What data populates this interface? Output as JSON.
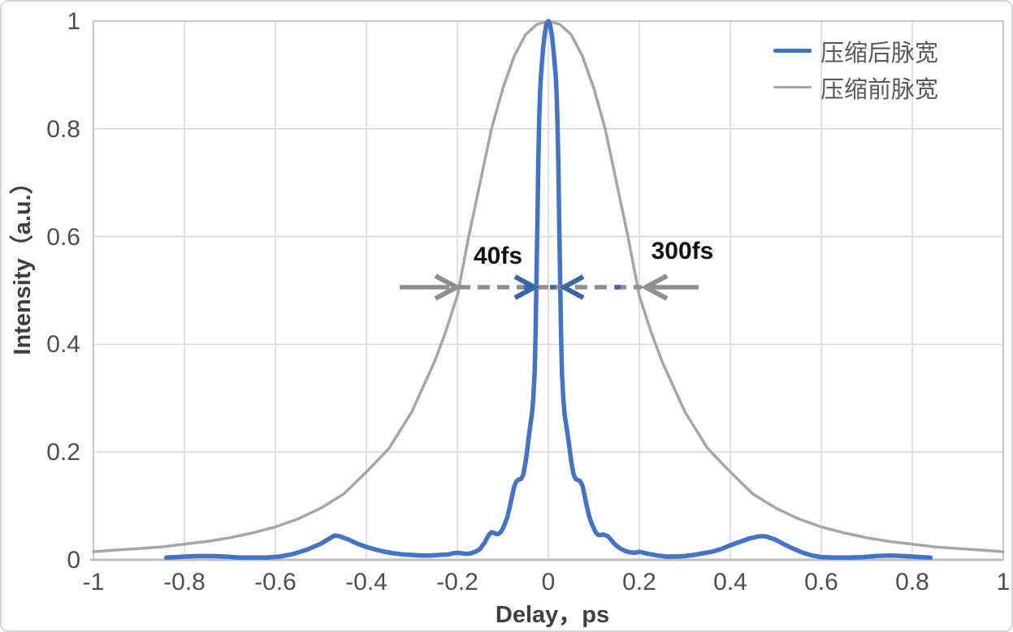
{
  "chart_data": {
    "type": "line",
    "title": "",
    "xlabel": "Delay，ps",
    "ylabel": "Intensity（a.u.）",
    "xlim": [
      -1,
      1
    ],
    "ylim": [
      0,
      1
    ],
    "grid": true,
    "legend_position": "top-right",
    "x_ticks": [
      -1,
      -0.8,
      -0.6,
      -0.4,
      -0.2,
      0,
      0.2,
      0.4,
      0.6,
      0.8,
      1
    ],
    "x_tick_labels": [
      "-1",
      "-0.8",
      "-0.6",
      "-0.4",
      "-0.2",
      "0",
      "0.2",
      "0.4",
      "0.6",
      "0.8",
      "1"
    ],
    "y_ticks": [
      0,
      0.2,
      0.4,
      0.6,
      0.8,
      1
    ],
    "y_tick_labels": [
      "0",
      "0.2",
      "0.4",
      "0.6",
      "0.8",
      "1"
    ],
    "series": [
      {
        "name": "压缩后脉宽",
        "color": "#4472C4",
        "stroke_width": 5.5,
        "points": [
          [
            -0.84,
            0.004
          ],
          [
            -0.82,
            0.005
          ],
          [
            -0.8,
            0.006
          ],
          [
            -0.77,
            0.007
          ],
          [
            -0.74,
            0.007
          ],
          [
            -0.71,
            0.006
          ],
          [
            -0.68,
            0.004
          ],
          [
            -0.65,
            0.004
          ],
          [
            -0.62,
            0.004
          ],
          [
            -0.59,
            0.006
          ],
          [
            -0.56,
            0.011
          ],
          [
            -0.53,
            0.019
          ],
          [
            -0.5,
            0.03
          ],
          [
            -0.48,
            0.04
          ],
          [
            -0.47,
            0.045
          ],
          [
            -0.46,
            0.044
          ],
          [
            -0.44,
            0.038
          ],
          [
            -0.42,
            0.03
          ],
          [
            -0.4,
            0.024
          ],
          [
            -0.38,
            0.019
          ],
          [
            -0.36,
            0.015
          ],
          [
            -0.34,
            0.012
          ],
          [
            -0.32,
            0.01
          ],
          [
            -0.3,
            0.009
          ],
          [
            -0.28,
            0.008
          ],
          [
            -0.26,
            0.008
          ],
          [
            -0.24,
            0.009
          ],
          [
            -0.22,
            0.01
          ],
          [
            -0.21,
            0.012
          ],
          [
            -0.2,
            0.013
          ],
          [
            -0.19,
            0.012
          ],
          [
            -0.18,
            0.011
          ],
          [
            -0.17,
            0.012
          ],
          [
            -0.16,
            0.015
          ],
          [
            -0.15,
            0.02
          ],
          [
            -0.145,
            0.026
          ],
          [
            -0.14,
            0.032
          ],
          [
            -0.135,
            0.04
          ],
          [
            -0.13,
            0.047
          ],
          [
            -0.125,
            0.051
          ],
          [
            -0.12,
            0.05
          ],
          [
            -0.115,
            0.048
          ],
          [
            -0.11,
            0.048
          ],
          [
            -0.105,
            0.051
          ],
          [
            -0.1,
            0.058
          ],
          [
            -0.095,
            0.068
          ],
          [
            -0.09,
            0.08
          ],
          [
            -0.085,
            0.097
          ],
          [
            -0.08,
            0.117
          ],
          [
            -0.075,
            0.136
          ],
          [
            -0.07,
            0.146
          ],
          [
            -0.065,
            0.149
          ],
          [
            -0.06,
            0.15
          ],
          [
            -0.055,
            0.158
          ],
          [
            -0.05,
            0.182
          ],
          [
            -0.047,
            0.2
          ],
          [
            -0.044,
            0.222
          ],
          [
            -0.04,
            0.247
          ],
          [
            -0.036,
            0.27
          ],
          [
            -0.033,
            0.3
          ],
          [
            -0.03,
            0.35
          ],
          [
            -0.028,
            0.42
          ],
          [
            -0.026,
            0.52
          ],
          [
            -0.024,
            0.63
          ],
          [
            -0.022,
            0.74
          ],
          [
            -0.02,
            0.82
          ],
          [
            -0.018,
            0.87
          ],
          [
            -0.016,
            0.9
          ],
          [
            -0.012,
            0.945
          ],
          [
            -0.008,
            0.975
          ],
          [
            -0.004,
            0.995
          ],
          [
            0,
            1
          ],
          [
            0.004,
            0.993
          ],
          [
            0.008,
            0.972
          ],
          [
            0.012,
            0.94
          ],
          [
            0.016,
            0.9
          ],
          [
            0.018,
            0.868
          ],
          [
            0.02,
            0.815
          ],
          [
            0.022,
            0.735
          ],
          [
            0.024,
            0.625
          ],
          [
            0.026,
            0.515
          ],
          [
            0.028,
            0.415
          ],
          [
            0.03,
            0.345
          ],
          [
            0.033,
            0.298
          ],
          [
            0.036,
            0.268
          ],
          [
            0.04,
            0.246
          ],
          [
            0.044,
            0.224
          ],
          [
            0.047,
            0.205
          ],
          [
            0.05,
            0.185
          ],
          [
            0.055,
            0.16
          ],
          [
            0.06,
            0.15
          ],
          [
            0.065,
            0.148
          ],
          [
            0.07,
            0.146
          ],
          [
            0.075,
            0.138
          ],
          [
            0.08,
            0.118
          ],
          [
            0.085,
            0.098
          ],
          [
            0.09,
            0.08
          ],
          [
            0.095,
            0.068
          ],
          [
            0.1,
            0.058
          ],
          [
            0.105,
            0.05
          ],
          [
            0.11,
            0.046
          ],
          [
            0.115,
            0.046
          ],
          [
            0.12,
            0.047
          ],
          [
            0.125,
            0.046
          ],
          [
            0.13,
            0.044
          ],
          [
            0.135,
            0.04
          ],
          [
            0.14,
            0.035
          ],
          [
            0.145,
            0.03
          ],
          [
            0.15,
            0.026
          ],
          [
            0.16,
            0.02
          ],
          [
            0.17,
            0.016
          ],
          [
            0.18,
            0.014
          ],
          [
            0.19,
            0.013
          ],
          [
            0.2,
            0.015
          ],
          [
            0.21,
            0.013
          ],
          [
            0.22,
            0.011
          ],
          [
            0.24,
            0.008
          ],
          [
            0.26,
            0.006
          ],
          [
            0.28,
            0.006
          ],
          [
            0.3,
            0.007
          ],
          [
            0.32,
            0.009
          ],
          [
            0.34,
            0.012
          ],
          [
            0.36,
            0.015
          ],
          [
            0.38,
            0.02
          ],
          [
            0.4,
            0.027
          ],
          [
            0.42,
            0.033
          ],
          [
            0.44,
            0.039
          ],
          [
            0.46,
            0.043
          ],
          [
            0.47,
            0.044
          ],
          [
            0.48,
            0.043
          ],
          [
            0.5,
            0.037
          ],
          [
            0.52,
            0.028
          ],
          [
            0.54,
            0.02
          ],
          [
            0.56,
            0.013
          ],
          [
            0.58,
            0.008
          ],
          [
            0.6,
            0.005
          ],
          [
            0.63,
            0.004
          ],
          [
            0.66,
            0.004
          ],
          [
            0.69,
            0.005
          ],
          [
            0.72,
            0.007
          ],
          [
            0.75,
            0.008
          ],
          [
            0.78,
            0.007
          ],
          [
            0.8,
            0.006
          ],
          [
            0.82,
            0.005
          ],
          [
            0.84,
            0.004
          ]
        ]
      },
      {
        "name": "压缩前脉宽",
        "color": "#A6A6A6",
        "stroke_width": 3.5,
        "points": [
          [
            -1,
            0.015
          ],
          [
            -0.95,
            0.018
          ],
          [
            -0.9,
            0.021
          ],
          [
            -0.85,
            0.024
          ],
          [
            -0.8,
            0.029
          ],
          [
            -0.75,
            0.034
          ],
          [
            -0.7,
            0.041
          ],
          [
            -0.65,
            0.05
          ],
          [
            -0.6,
            0.061
          ],
          [
            -0.55,
            0.076
          ],
          [
            -0.5,
            0.096
          ],
          [
            -0.45,
            0.122
          ],
          [
            -0.4,
            0.163
          ],
          [
            -0.35,
            0.207
          ],
          [
            -0.3,
            0.275
          ],
          [
            -0.25,
            0.368
          ],
          [
            -0.225,
            0.425
          ],
          [
            -0.2,
            0.49
          ],
          [
            -0.175,
            0.6
          ],
          [
            -0.15,
            0.7
          ],
          [
            -0.125,
            0.8
          ],
          [
            -0.1,
            0.875
          ],
          [
            -0.075,
            0.935
          ],
          [
            -0.05,
            0.975
          ],
          [
            -0.025,
            0.994
          ],
          [
            0,
            1
          ],
          [
            0.025,
            0.994
          ],
          [
            0.05,
            0.975
          ],
          [
            0.075,
            0.935
          ],
          [
            0.1,
            0.875
          ],
          [
            0.125,
            0.8
          ],
          [
            0.15,
            0.7
          ],
          [
            0.175,
            0.6
          ],
          [
            0.2,
            0.49
          ],
          [
            0.225,
            0.425
          ],
          [
            0.25,
            0.368
          ],
          [
            0.3,
            0.275
          ],
          [
            0.35,
            0.207
          ],
          [
            0.4,
            0.163
          ],
          [
            0.45,
            0.122
          ],
          [
            0.5,
            0.096
          ],
          [
            0.55,
            0.076
          ],
          [
            0.6,
            0.061
          ],
          [
            0.65,
            0.05
          ],
          [
            0.7,
            0.041
          ],
          [
            0.75,
            0.034
          ],
          [
            0.8,
            0.029
          ],
          [
            0.85,
            0.024
          ],
          [
            0.9,
            0.021
          ],
          [
            0.95,
            0.018
          ],
          [
            1,
            0.015
          ]
        ]
      }
    ],
    "annotations": {
      "compressed_fwhm_label": "40fs",
      "uncompressed_fwhm_label": "300fs",
      "annotation_level": 0.505
    }
  },
  "legend": {
    "items": [
      {
        "label": "压缩后脉宽",
        "color": "#4472C4"
      },
      {
        "label": "压缩前脉宽",
        "color": "#A6A6A6"
      }
    ]
  },
  "colors": {
    "grid": "#D9D9D9",
    "plot_border": "#C9C9C9",
    "axis_line": "#BDBDBD",
    "tick_text": "#4F4F4F",
    "axis_title_text": "#3F3F3F",
    "annotation_text": "#111111",
    "arrow_gray": "#8F8F8F",
    "arrow_blue": "#3A66A8",
    "legend_text": "#595959",
    "frame_border": "#D7D7D7"
  }
}
